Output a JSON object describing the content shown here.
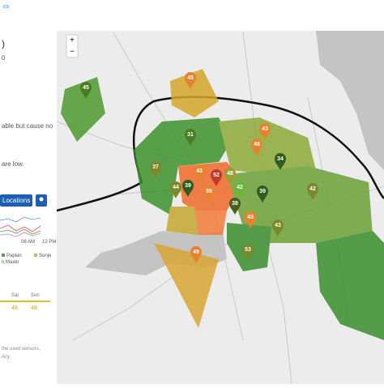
{
  "header": {
    "brand": "co"
  },
  "zoom": {
    "in": "+",
    "out": "−"
  },
  "panel": {
    "title": ")",
    "subtitle": "0",
    "lines": [
      "able but cause no",
      "are low."
    ],
    "button": "Locations",
    "chart": {
      "xlabels": [
        "08 AM",
        "12 PM"
      ],
      "legend": [
        "Paplan",
        "Sonje",
        "n Maalo"
      ]
    },
    "forecast": {
      "days": [
        "Sat",
        "Sun"
      ],
      "values": [
        48,
        48
      ]
    },
    "footer": [
      "the used sensors,",
      "Acy"
    ]
  },
  "markers": [
    45,
    45,
    31,
    48,
    43,
    37,
    43,
    52,
    48,
    39,
    44,
    59,
    38,
    42,
    39,
    34,
    42,
    43,
    43,
    53,
    49
  ]
}
